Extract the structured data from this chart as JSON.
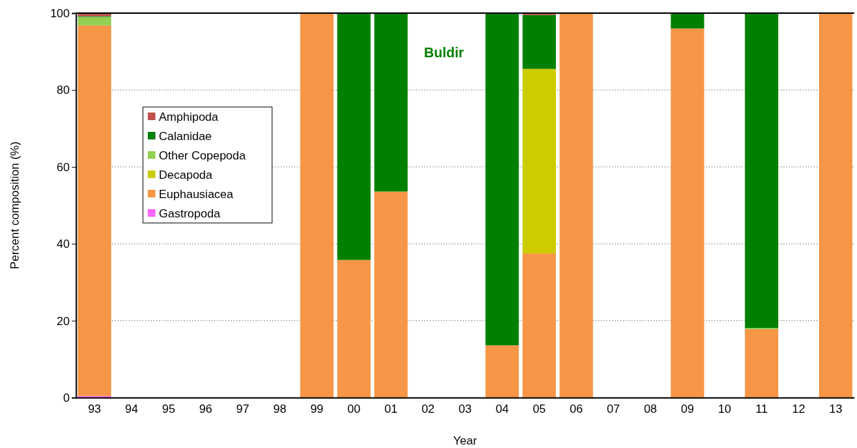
{
  "chart_data": {
    "type": "bar",
    "stacked": true,
    "xlabel": "Year",
    "ylabel": "Percent composition (%)",
    "annotations": [
      "Buldir"
    ],
    "categories": [
      "93",
      "94",
      "95",
      "96",
      "97",
      "98",
      "99",
      "00",
      "01",
      "02",
      "03",
      "04",
      "05",
      "06",
      "07",
      "08",
      "09",
      "10",
      "11",
      "12",
      "13"
    ],
    "series": [
      {
        "name": "Gastropoda",
        "color": "#ff66ff",
        "values": [
          0.4,
          null,
          null,
          null,
          null,
          null,
          0,
          0,
          0,
          null,
          null,
          0,
          0,
          0,
          null,
          null,
          0,
          null,
          0,
          null,
          0
        ]
      },
      {
        "name": "Euphausiacea",
        "color": "#f79646",
        "values": [
          96.4,
          null,
          null,
          null,
          null,
          null,
          100,
          35.8,
          53.6,
          null,
          null,
          13.6,
          37.5,
          100,
          null,
          null,
          96,
          null,
          17.8,
          null,
          100
        ]
      },
      {
        "name": "Decapoda",
        "color": "#cccc00",
        "values": [
          0,
          null,
          null,
          null,
          null,
          null,
          0,
          0,
          0,
          null,
          null,
          0,
          48,
          0,
          null,
          null,
          0,
          null,
          0,
          null,
          0
        ]
      },
      {
        "name": "Other Copepoda",
        "color": "#92d050",
        "values": [
          2.2,
          null,
          null,
          null,
          null,
          null,
          0,
          0,
          0,
          null,
          null,
          0,
          0,
          0,
          null,
          null,
          0,
          null,
          0.3,
          null,
          0
        ]
      },
      {
        "name": "Calanidae",
        "color": "#008000",
        "values": [
          0.2,
          null,
          null,
          null,
          null,
          null,
          0,
          64.2,
          46.4,
          null,
          null,
          86.4,
          14,
          0,
          null,
          null,
          4,
          null,
          81.9,
          null,
          0
        ]
      },
      {
        "name": "Amphipoda",
        "color": "#c0504d",
        "values": [
          0.8,
          null,
          null,
          null,
          null,
          null,
          0,
          0,
          0,
          null,
          null,
          0,
          0.5,
          0,
          null,
          null,
          0,
          null,
          0,
          null,
          0
        ]
      }
    ],
    "ylim": [
      0,
      100
    ],
    "yticks": [
      0,
      20,
      40,
      60,
      80,
      100
    ],
    "grid": "y",
    "legend": "top left"
  }
}
